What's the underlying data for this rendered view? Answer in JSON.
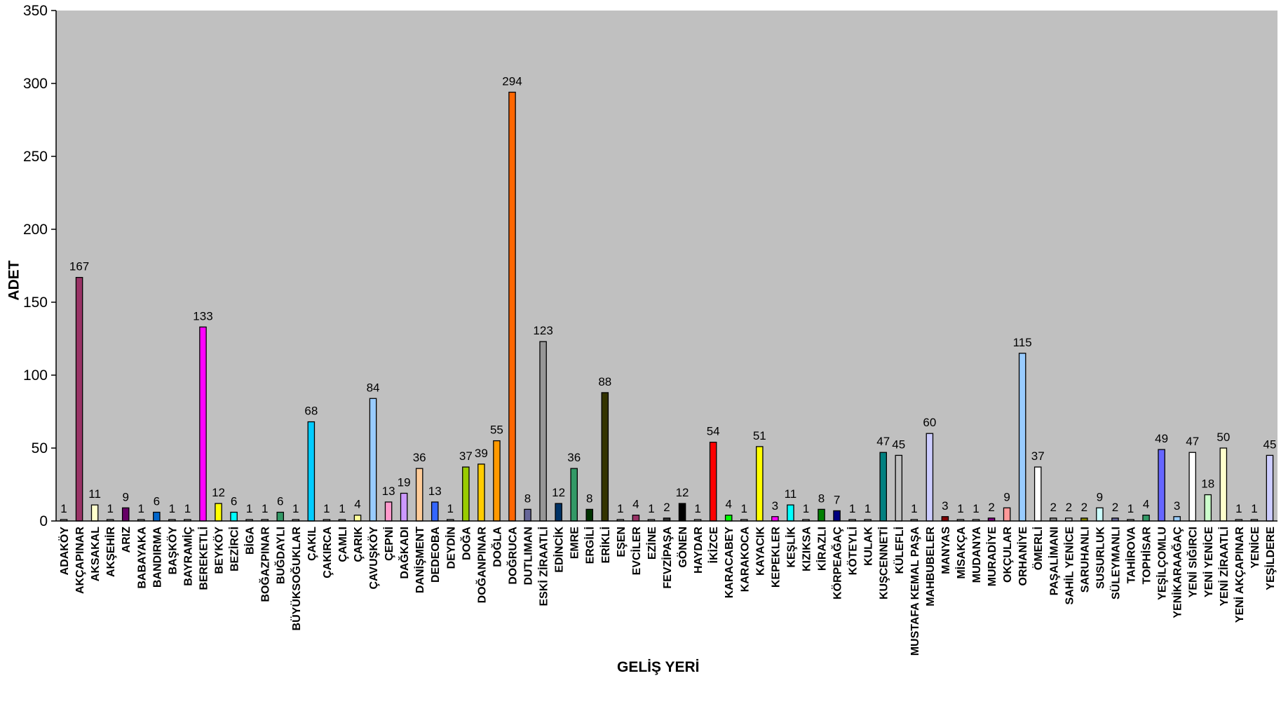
{
  "chart_data": {
    "type": "bar",
    "title": "",
    "xlabel": "GELİŞ YERİ",
    "ylabel": "ADET",
    "ylim": [
      0,
      350
    ],
    "yticks": [
      0,
      50,
      100,
      150,
      200,
      250,
      300,
      350
    ],
    "grid": false,
    "background": "#c0c0c0",
    "categories": [
      "ADAKÖY",
      "AKÇAPINAR",
      "AKSAKAL",
      "AKŞEHİR",
      "ARIZ",
      "BABAYAKA",
      "BANDIRMA",
      "BAŞKÖY",
      "BAYRAMİÇ",
      "BEREKETLİ",
      "BEYKÖY",
      "BEZİRCİ",
      "BİGA",
      "BOĞAZPINAR",
      "BUĞDAYLI",
      "BÜYÜKSOĞUKLAR",
      "ÇAKIL",
      "ÇAKIRCA",
      "ÇAMLI",
      "ÇARIK",
      "ÇAVUŞKÖY",
      "ÇEPNİ",
      "DAĞKADI",
      "DANİŞMENT",
      "DEDEOBA",
      "DEYDİN",
      "DOĞA",
      "DOĞANPINAR",
      "DOĞLA",
      "DOĞRUCA",
      "DUTLIMAN",
      "ESKİ ZİRAATLİ",
      "EDİNCİK",
      "EMRE",
      "ERGİLİ",
      "ERİKLİ",
      "EŞEN",
      "EVCİLER",
      "EZİNE",
      "FEVZİPAŞA",
      "GÖNEN",
      "HAYDAR",
      "İKİZCE",
      "KARACABEY",
      "KARAKOCA",
      "KAYACIK",
      "KEPEKLER",
      "KEŞLİK",
      "KIZIKSA",
      "KİRAZLI",
      "KÖRPEAĞAÇ",
      "KÖTEYLİ",
      "KULAK",
      "KUŞCENNETİ",
      "KÜLEFLİ",
      "MUSTAFA KEMAL PAŞA",
      "MAHBUBELER",
      "MANYAS",
      "MİSAKÇA",
      "MUDANYA",
      "MURADİYE",
      "OKÇULAR",
      "ORHANİYE",
      "ÖMERLİ",
      "PAŞALİMANI",
      "SAHİL YENİCE",
      "SARUHANLI",
      "SUSURLUK",
      "SÜLEYMANLI",
      "TAHİROVA",
      "TOPHİSAR",
      "YEŞİLÇOMLU",
      "YENİKARAAĞAÇ",
      "YENİ SIĞIRCI",
      "YENİ YENİCE",
      "YENİ ZİRAATLİ",
      "YENİ AKÇAPINAR",
      "YENİCE",
      "YEŞİLDERE"
    ],
    "values": [
      1,
      167,
      11,
      1,
      9,
      1,
      6,
      1,
      1,
      133,
      12,
      6,
      1,
      1,
      6,
      1,
      68,
      1,
      1,
      4,
      84,
      13,
      19,
      36,
      13,
      1,
      37,
      39,
      55,
      294,
      8,
      123,
      12,
      36,
      8,
      88,
      1,
      4,
      1,
      2,
      12,
      1,
      54,
      4,
      1,
      51,
      3,
      11,
      1,
      8,
      7,
      1,
      1,
      47,
      45,
      1,
      60,
      3,
      1,
      1,
      2,
      9,
      115,
      37,
      2,
      2,
      2,
      9,
      2,
      1,
      4,
      49,
      3,
      47,
      18,
      50,
      1,
      1,
      45
    ],
    "colors": [
      "#c0c0c0",
      "#993366",
      "#ffffcc",
      "#c0c0c0",
      "#660066",
      "#c0c0c0",
      "#0066cc",
      "#c0c0c0",
      "#c0c0c0",
      "#ff00ff",
      "#ffff00",
      "#00ffff",
      "#c0c0c0",
      "#c0c0c0",
      "#339966",
      "#c0c0c0",
      "#00ccff",
      "#c0c0c0",
      "#c0c0c0",
      "#ffff99",
      "#99ccff",
      "#ff99cc",
      "#cc99ff",
      "#ffcc99",
      "#3366ff",
      "#c0c0c0",
      "#99cc00",
      "#ffcc00",
      "#ff9900",
      "#ff6600",
      "#666699",
      "#969696",
      "#003366",
      "#339966",
      "#003300",
      "#333300",
      "#c0c0c0",
      "#993366",
      "#c0c0c0",
      "#333333",
      "#000000",
      "#c0c0c0",
      "#ff0000",
      "#00ff00",
      "#c0c0c0",
      "#ffff00",
      "#ff00ff",
      "#00ffff",
      "#c0c0c0",
      "#008000",
      "#000080",
      "#c0c0c0",
      "#c0c0c0",
      "#008080",
      "#c0c0c0",
      "#c0c0c0",
      "#ccccff",
      "#800000",
      "#c0c0c0",
      "#c0c0c0",
      "#800080",
      "#ff9999",
      "#99ccff",
      "#ffffff",
      "#808080",
      "#c0c0c0",
      "#808000",
      "#ccffff",
      "#666699",
      "#c0c0c0",
      "#339966",
      "#6666ff",
      "#99ccff",
      "#ffffff",
      "#ccffcc",
      "#ffffcc",
      "#c0c0c0",
      "#c0c0c0",
      "#ccccff"
    ]
  }
}
